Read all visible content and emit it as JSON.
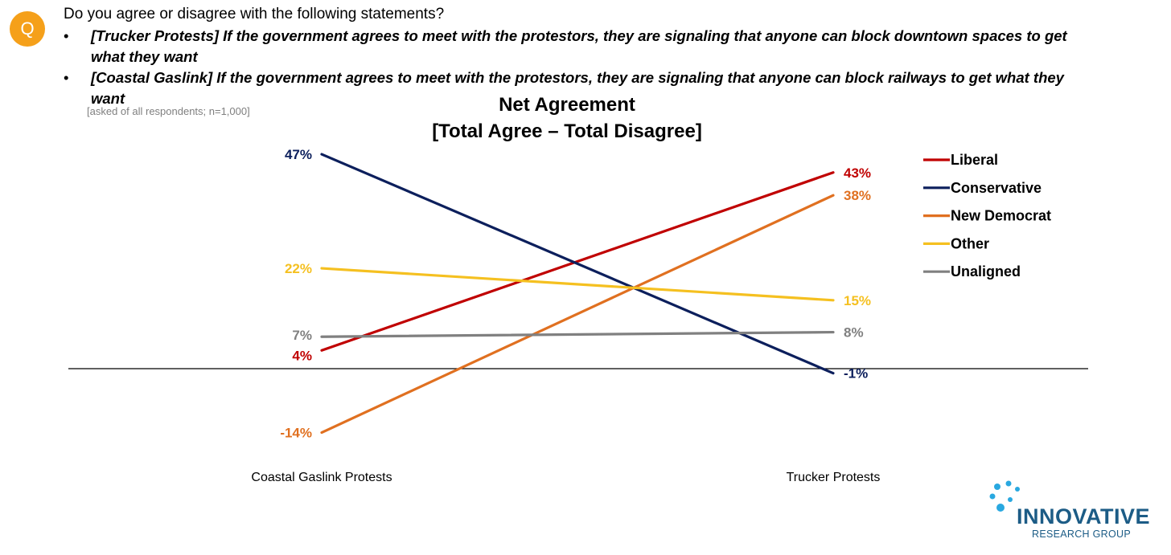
{
  "header": {
    "badge": "Q",
    "question": "Do you agree or disagree with the following statements?",
    "bullets": [
      "[Trucker Protests] If the government agrees to meet with the protestors, they are signaling that anyone can block downtown spaces to get what they want",
      "[Coastal Gaslink] If the government agrees to meet with the protestors, they are signaling that anyone can block railways to get what they want"
    ],
    "bullet_symbol": "•",
    "note": "[asked of all respondents; n=1,000]"
  },
  "chart_data": {
    "type": "line",
    "title": "Net Agreement",
    "subtitle": "[Total Agree – Total Disagree]",
    "categories": [
      "Coastal Gaslink Protests",
      "Trucker Protests"
    ],
    "series": [
      {
        "name": "Liberal",
        "color": "#c00000",
        "values": [
          4,
          43
        ],
        "labels": [
          "4%",
          "43%"
        ]
      },
      {
        "name": "Conservative",
        "color": "#0c1f5c",
        "values": [
          47,
          -1
        ],
        "labels": [
          "47%",
          "-1%"
        ]
      },
      {
        "name": "New Democrat",
        "color": "#e07020",
        "values": [
          -14,
          38
        ],
        "labels": [
          "-14%",
          "38%"
        ]
      },
      {
        "name": "Other",
        "color": "#f5c020",
        "values": [
          22,
          15
        ],
        "labels": [
          "22%",
          "15%"
        ]
      },
      {
        "name": "Unaligned",
        "color": "#808080",
        "values": [
          7,
          8
        ],
        "labels": [
          "7%",
          "8%"
        ]
      }
    ],
    "legend_position": "right",
    "grid": false
  },
  "logo": {
    "name": "INNOVATIVE",
    "sub": "RESEARCH GROUP",
    "color": "#1c5c86",
    "dot_color": "#29a8e0"
  }
}
